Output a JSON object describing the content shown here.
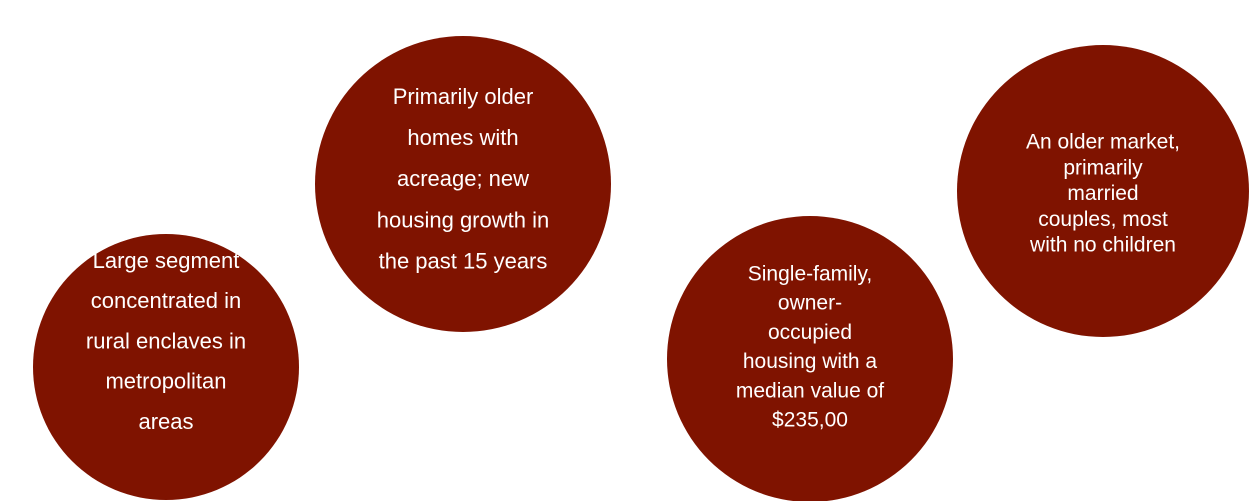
{
  "circles": [
    {
      "lines": [
        "Large segment",
        "concentrated in",
        "rural enclaves in",
        "metropolitan",
        "areas"
      ]
    },
    {
      "lines": [
        "Primarily older",
        "homes with",
        "acreage; new",
        "housing growth in",
        "the past 15 years"
      ]
    },
    {
      "lines": [
        "Single-family,",
        "owner-",
        "occupied",
        "housing with a",
        "median value of",
        "$235,00"
      ]
    },
    {
      "lines": [
        "An older market,",
        "primarily",
        "married",
        "couples, most",
        "with no children"
      ]
    }
  ]
}
